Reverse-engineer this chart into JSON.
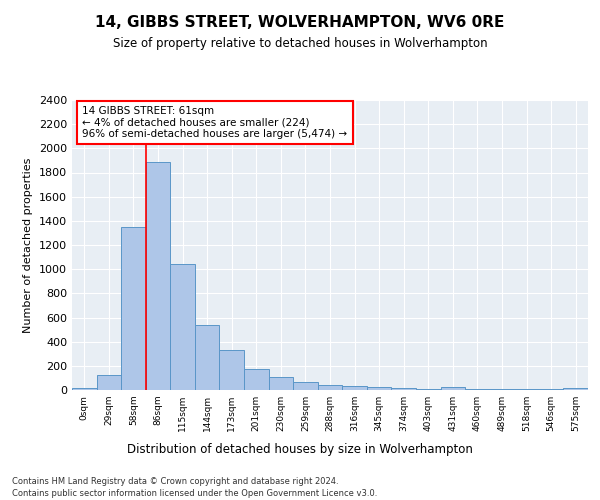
{
  "title": "14, GIBBS STREET, WOLVERHAMPTON, WV6 0RE",
  "subtitle": "Size of property relative to detached houses in Wolverhampton",
  "xlabel": "Distribution of detached houses by size in Wolverhampton",
  "ylabel": "Number of detached properties",
  "footer1": "Contains HM Land Registry data © Crown copyright and database right 2024.",
  "footer2": "Contains public sector information licensed under the Open Government Licence v3.0.",
  "annotation_line1": "14 GIBBS STREET: 61sqm",
  "annotation_line2": "← 4% of detached houses are smaller (224)",
  "annotation_line3": "96% of semi-detached houses are larger (5,474) →",
  "bar_values": [
    15,
    125,
    1350,
    1890,
    1040,
    540,
    335,
    170,
    110,
    65,
    40,
    30,
    25,
    20,
    10,
    25,
    5,
    5,
    5,
    5,
    15
  ],
  "bar_color": "#aec6e8",
  "bar_edge_color": "#5a96c8",
  "bin_labels": [
    "0sqm",
    "29sqm",
    "58sqm",
    "86sqm",
    "115sqm",
    "144sqm",
    "173sqm",
    "201sqm",
    "230sqm",
    "259sqm",
    "288sqm",
    "316sqm",
    "345sqm",
    "374sqm",
    "403sqm",
    "431sqm",
    "460sqm",
    "489sqm",
    "518sqm",
    "546sqm",
    "575sqm"
  ],
  "ylim": [
    0,
    2400
  ],
  "yticks": [
    0,
    200,
    400,
    600,
    800,
    1000,
    1200,
    1400,
    1600,
    1800,
    2000,
    2200,
    2400
  ],
  "red_line_x": 2.5,
  "background_color": "#ffffff",
  "plot_bg_color": "#e8eef4"
}
